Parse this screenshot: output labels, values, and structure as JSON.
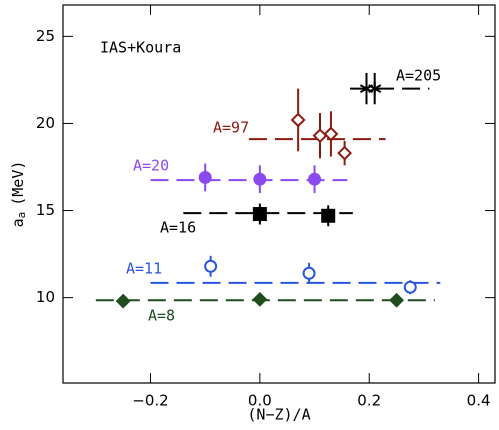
{
  "chart_data": {
    "type": "errorbar-scatter",
    "annotation": "IAS+Koura",
    "x_label": "(N−Z)/A",
    "y_label": {
      "main": "a",
      "sub": "a",
      "unit": "(MeV)"
    },
    "xlim": [
      -0.36,
      0.43
    ],
    "ylim": [
      5.1,
      26.8
    ],
    "xticks": [
      {
        "value": -0.2,
        "label": "−0.2"
      },
      {
        "value": 0,
        "label": "0.0"
      },
      {
        "value": 0.2,
        "label": "0.2"
      },
      {
        "value": 0.4,
        "label": "0.4"
      }
    ],
    "yticks": [
      10,
      15,
      20,
      25
    ],
    "series": [
      {
        "name": "A=8",
        "color": "#1e4d1e",
        "marker": "diamond-filled",
        "x": [
          -0.25,
          0,
          0.25
        ],
        "values": [
          9.8,
          9.9,
          9.85
        ],
        "errors": [
          0.2,
          0.2,
          0.2
        ],
        "line_x": [
          -0.3,
          0.32
        ],
        "line_y": 9.85
      },
      {
        "name": "A=11",
        "color": "#2a55e0",
        "marker": "circle-open",
        "x": [
          -0.09,
          0.09,
          0.275
        ],
        "values": [
          11.8,
          11.4,
          10.6
        ],
        "errors": [
          0.6,
          0.6,
          0.4
        ],
        "line_x": [
          -0.2,
          0.33
        ],
        "line_y": 10.85
      },
      {
        "name": "A=16",
        "color": "#000000",
        "marker": "square-filled",
        "x": [
          0,
          0.125
        ],
        "values": [
          14.8,
          14.7
        ],
        "errors": [
          0.6,
          0.6
        ],
        "line_x": [
          -0.14,
          0.17
        ],
        "line_y": 14.85
      },
      {
        "name": "A=20",
        "color": "#8a4af0",
        "marker": "circle-filled",
        "x": [
          -0.1,
          0,
          0.1
        ],
        "values": [
          16.9,
          16.8,
          16.8
        ],
        "errors": [
          0.8,
          0.8,
          0.8
        ],
        "line_x": [
          -0.2,
          0.16
        ],
        "line_y": 16.75
      },
      {
        "name": "A=97",
        "color": "#8b1a10",
        "marker": "diamond-open",
        "x": [
          0.07,
          0.11,
          0.13,
          0.155
        ],
        "values": [
          20.2,
          19.3,
          19.4,
          18.3
        ],
        "errors": [
          1.8,
          1.3,
          1.3,
          0.7
        ],
        "line_x": [
          -0.02,
          0.23
        ],
        "line_y": 19.1
      },
      {
        "name": "A=205",
        "color": "#000000",
        "marker": "asterisk",
        "x": [
          0.195,
          0.21
        ],
        "values": [
          22.0,
          22.0
        ],
        "errors": [
          0.9,
          0.9
        ],
        "line_x": [
          0.165,
          0.31
        ],
        "line_y": 22.0
      }
    ]
  }
}
